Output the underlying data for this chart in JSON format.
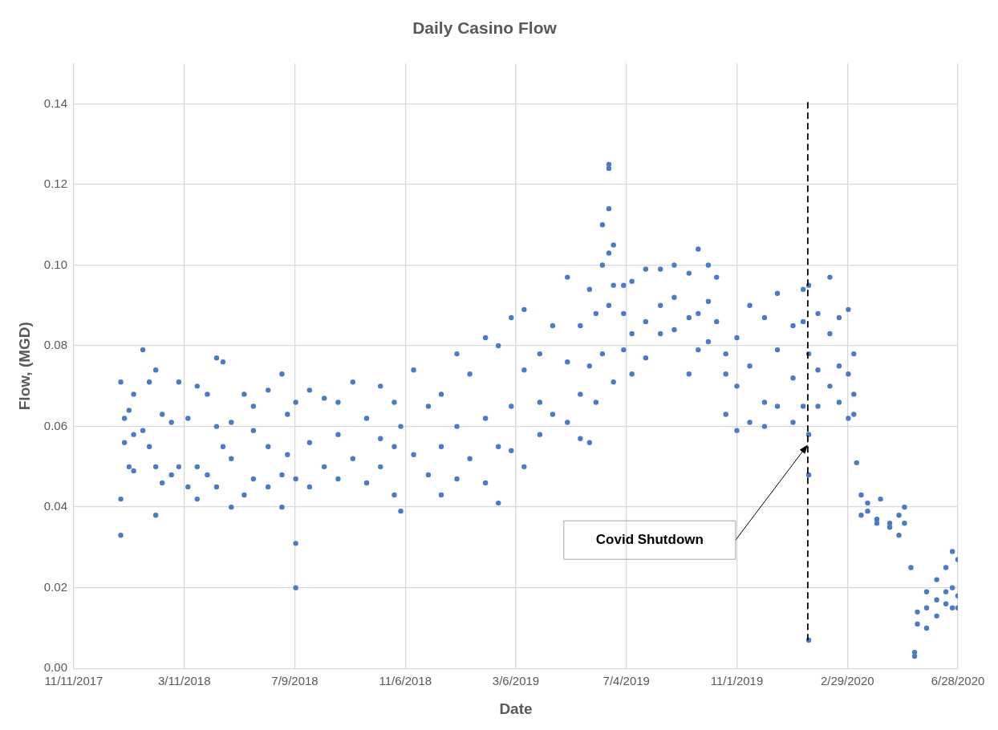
{
  "chart_data": {
    "type": "scatter",
    "title": "Daily Casino Flow",
    "xlabel": "Date",
    "ylabel": "Flow, (MGD)",
    "marker": "circle",
    "grid": true,
    "xlim": [
      "2017-11-11",
      "2020-06-28"
    ],
    "xticks": [
      {
        "value": "2017-11-11",
        "label": "11/11/2017"
      },
      {
        "value": "2018-03-11",
        "label": "3/11/2018"
      },
      {
        "value": "2018-07-09",
        "label": "7/9/2018"
      },
      {
        "value": "2018-11-06",
        "label": "11/6/2018"
      },
      {
        "value": "2019-03-06",
        "label": "3/6/2019"
      },
      {
        "value": "2019-07-04",
        "label": "7/4/2019"
      },
      {
        "value": "2019-11-01",
        "label": "11/1/2019"
      },
      {
        "value": "2020-02-29",
        "label": "2/29/2020"
      },
      {
        "value": "2020-06-28",
        "label": "6/28/2020"
      }
    ],
    "ylim": [
      0,
      0.15
    ],
    "yticks": [
      {
        "value": 0,
        "label": "0.00"
      },
      {
        "value": 0.02,
        "label": "0.02"
      },
      {
        "value": 0.04,
        "label": "0.04"
      },
      {
        "value": 0.06,
        "label": "0.06"
      },
      {
        "value": 0.08,
        "label": "0.08"
      },
      {
        "value": 0.1,
        "label": "0.10"
      },
      {
        "value": 0.12,
        "label": "0.12"
      },
      {
        "value": 0.14,
        "label": "0.14"
      }
    ],
    "ref_lines": [
      {
        "axis": "x",
        "value": "2020-01-17",
        "color": "#000000",
        "line_style": "dashed"
      }
    ],
    "annotations": [
      "Covid Shutdown"
    ],
    "series": [
      {
        "color": "#4a7bc4",
        "x": [
          "2018-01-01",
          "2018-01-01",
          "2018-01-01",
          "2018-01-05",
          "2018-01-05",
          "2018-01-10",
          "2018-01-10",
          "2018-01-15",
          "2018-01-15",
          "2018-01-15",
          "2018-01-25",
          "2018-01-25",
          "2018-02-01",
          "2018-02-01",
          "2018-02-08",
          "2018-02-08",
          "2018-02-08",
          "2018-02-15",
          "2018-02-15",
          "2018-02-25",
          "2018-02-25",
          "2018-03-05",
          "2018-03-05",
          "2018-03-15",
          "2018-03-15",
          "2018-03-25",
          "2018-03-25",
          "2018-03-25",
          "2018-04-05",
          "2018-04-05",
          "2018-04-15",
          "2018-04-15",
          "2018-04-15",
          "2018-04-22",
          "2018-04-22",
          "2018-05-01",
          "2018-05-01",
          "2018-05-01",
          "2018-05-15",
          "2018-05-15",
          "2018-05-25",
          "2018-05-25",
          "2018-05-25",
          "2018-06-10",
          "2018-06-10",
          "2018-06-10",
          "2018-06-25",
          "2018-06-25",
          "2018-06-25",
          "2018-07-01",
          "2018-07-01",
          "2018-07-10",
          "2018-07-10",
          "2018-07-10",
          "2018-07-10",
          "2018-07-25",
          "2018-07-25",
          "2018-07-25",
          "2018-08-10",
          "2018-08-10",
          "2018-08-25",
          "2018-08-25",
          "2018-08-25",
          "2018-09-10",
          "2018-09-10",
          "2018-09-25",
          "2018-09-25",
          "2018-10-10",
          "2018-10-10",
          "2018-10-10",
          "2018-10-25",
          "2018-10-25",
          "2018-10-25",
          "2018-11-01",
          "2018-11-01",
          "2018-11-15",
          "2018-11-15",
          "2018-12-01",
          "2018-12-01",
          "2018-12-15",
          "2018-12-15",
          "2018-12-15",
          "2019-01-01",
          "2019-01-01",
          "2019-01-01",
          "2019-01-15",
          "2019-01-15",
          "2019-02-01",
          "2019-02-01",
          "2019-02-01",
          "2019-02-15",
          "2019-02-15",
          "2019-02-15",
          "2019-03-01",
          "2019-03-01",
          "2019-03-01",
          "2019-03-15",
          "2019-03-15",
          "2019-03-15",
          "2019-04-01",
          "2019-04-01",
          "2019-04-01",
          "2019-04-15",
          "2019-04-15",
          "2019-05-01",
          "2019-05-01",
          "2019-05-01",
          "2019-05-15",
          "2019-05-15",
          "2019-05-15",
          "2019-05-25",
          "2019-05-25",
          "2019-05-25",
          "2019-06-01",
          "2019-06-01",
          "2019-06-08",
          "2019-06-08",
          "2019-06-08",
          "2019-06-15",
          "2019-06-15",
          "2019-06-15",
          "2019-06-15",
          "2019-06-15",
          "2019-06-20",
          "2019-06-20",
          "2019-06-20",
          "2019-07-01",
          "2019-07-01",
          "2019-07-01",
          "2019-07-10",
          "2019-07-10",
          "2019-07-10",
          "2019-07-25",
          "2019-07-25",
          "2019-07-25",
          "2019-08-10",
          "2019-08-10",
          "2019-08-10",
          "2019-08-25",
          "2019-08-25",
          "2019-08-25",
          "2019-09-10",
          "2019-09-10",
          "2019-09-10",
          "2019-09-20",
          "2019-09-20",
          "2019-09-20",
          "2019-10-01",
          "2019-10-01",
          "2019-10-01",
          "2019-10-10",
          "2019-10-10",
          "2019-10-20",
          "2019-10-20",
          "2019-10-20",
          "2019-11-01",
          "2019-11-01",
          "2019-11-01",
          "2019-11-15",
          "2019-11-15",
          "2019-11-15",
          "2019-12-01",
          "2019-12-01",
          "2019-12-01",
          "2019-12-15",
          "2019-12-15",
          "2019-12-15",
          "2020-01-01",
          "2020-01-01",
          "2020-01-01",
          "2020-01-12",
          "2020-01-12",
          "2020-01-12",
          "2020-01-18",
          "2020-01-18",
          "2020-01-18",
          "2020-01-18",
          "2020-01-18",
          "2020-01-28",
          "2020-01-28",
          "2020-01-28",
          "2020-02-10",
          "2020-02-10",
          "2020-02-10",
          "2020-02-20",
          "2020-02-20",
          "2020-02-20",
          "2020-03-01",
          "2020-03-01",
          "2020-03-01",
          "2020-03-07",
          "2020-03-07",
          "2020-03-07",
          "2020-03-10",
          "2020-03-15",
          "2020-03-15",
          "2020-03-22",
          "2020-03-22",
          "2020-04-01",
          "2020-04-01",
          "2020-04-05",
          "2020-04-15",
          "2020-04-15",
          "2020-04-25",
          "2020-04-25",
          "2020-05-01",
          "2020-05-01",
          "2020-05-08",
          "2020-05-12",
          "2020-05-12",
          "2020-05-15",
          "2020-05-15",
          "2020-05-25",
          "2020-05-25",
          "2020-05-25",
          "2020-06-05",
          "2020-06-05",
          "2020-06-05",
          "2020-06-15",
          "2020-06-15",
          "2020-06-15",
          "2020-06-22",
          "2020-06-22",
          "2020-06-22",
          "2020-06-28",
          "2020-06-28",
          "2020-06-28"
        ],
        "values": [
          0.033,
          0.042,
          0.071,
          0.062,
          0.056,
          0.05,
          0.064,
          0.049,
          0.058,
          0.068,
          0.079,
          0.059,
          0.071,
          0.055,
          0.074,
          0.038,
          0.05,
          0.063,
          0.046,
          0.061,
          0.048,
          0.071,
          0.05,
          0.062,
          0.045,
          0.07,
          0.042,
          0.05,
          0.068,
          0.048,
          0.077,
          0.06,
          0.045,
          0.076,
          0.055,
          0.04,
          0.052,
          0.061,
          0.068,
          0.043,
          0.065,
          0.047,
          0.059,
          0.069,
          0.045,
          0.055,
          0.073,
          0.048,
          0.04,
          0.063,
          0.053,
          0.031,
          0.02,
          0.066,
          0.047,
          0.069,
          0.056,
          0.045,
          0.067,
          0.05,
          0.066,
          0.058,
          0.047,
          0.071,
          0.052,
          0.062,
          0.046,
          0.07,
          0.057,
          0.05,
          0.066,
          0.043,
          0.055,
          0.039,
          0.06,
          0.074,
          0.053,
          0.065,
          0.048,
          0.068,
          0.043,
          0.055,
          0.078,
          0.06,
          0.047,
          0.073,
          0.052,
          0.082,
          0.062,
          0.046,
          0.08,
          0.041,
          0.055,
          0.087,
          0.065,
          0.054,
          0.089,
          0.074,
          0.05,
          0.078,
          0.058,
          0.066,
          0.085,
          0.063,
          0.097,
          0.076,
          0.061,
          0.085,
          0.068,
          0.057,
          0.094,
          0.075,
          0.056,
          0.088,
          0.066,
          0.11,
          0.1,
          0.078,
          0.125,
          0.124,
          0.114,
          0.103,
          0.09,
          0.105,
          0.095,
          0.071,
          0.088,
          0.079,
          0.095,
          0.096,
          0.083,
          0.073,
          0.099,
          0.086,
          0.077,
          0.099,
          0.09,
          0.083,
          0.1,
          0.092,
          0.084,
          0.098,
          0.087,
          0.073,
          0.104,
          0.088,
          0.079,
          0.1,
          0.091,
          0.081,
          0.097,
          0.086,
          0.078,
          0.063,
          0.073,
          0.059,
          0.082,
          0.07,
          0.09,
          0.075,
          0.061,
          0.087,
          0.066,
          0.06,
          0.093,
          0.079,
          0.065,
          0.085,
          0.072,
          0.061,
          0.094,
          0.086,
          0.065,
          0.007,
          0.058,
          0.048,
          0.095,
          0.078,
          0.088,
          0.074,
          0.065,
          0.097,
          0.083,
          0.07,
          0.087,
          0.075,
          0.066,
          0.089,
          0.073,
          0.062,
          0.078,
          0.068,
          0.063,
          0.051,
          0.043,
          0.038,
          0.041,
          0.039,
          0.037,
          0.036,
          0.042,
          0.036,
          0.035,
          0.038,
          0.033,
          0.04,
          0.036,
          0.025,
          0.004,
          0.003,
          0.011,
          0.014,
          0.015,
          0.01,
          0.019,
          0.022,
          0.013,
          0.017,
          0.025,
          0.016,
          0.019,
          0.029,
          0.02,
          0.015,
          0.027,
          0.018,
          0.015
        ]
      }
    ]
  }
}
